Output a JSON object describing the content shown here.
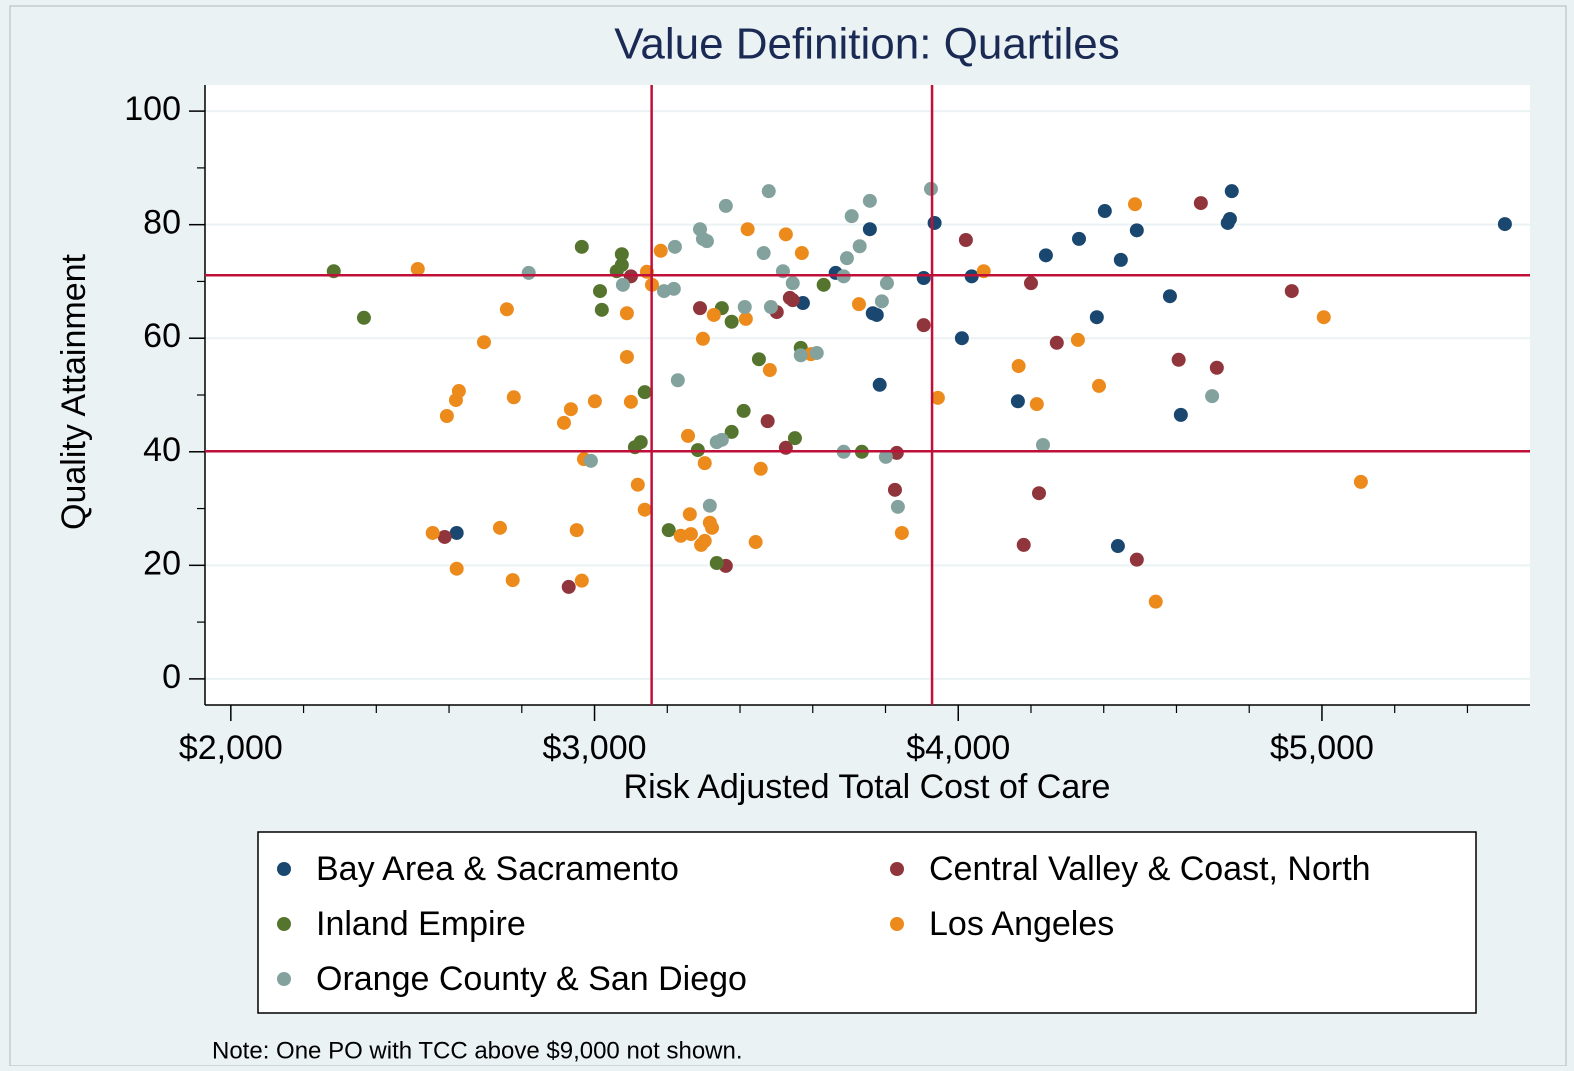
{
  "chart_data": {
    "type": "scatter",
    "title": "Value Definition: Quartiles",
    "xlabel": "Risk Adjusted Total Cost of Care",
    "ylabel": "Quality Attainment",
    "note": "Note: One PO with TCC above $9,000 not shown.",
    "xlim": [
      1929,
      5572
    ],
    "ylim": [
      -4.6,
      104.6
    ],
    "xticks": [
      {
        "value": 2000,
        "label": "$2,000"
      },
      {
        "value": 3000,
        "label": "$3,000"
      },
      {
        "value": 4000,
        "label": "$4,000"
      },
      {
        "value": 5000,
        "label": "$5,000"
      }
    ],
    "x_minor_ticks": [
      2200,
      2400,
      2600,
      2800,
      3200,
      3400,
      3600,
      3800,
      4200,
      4400,
      4600,
      4800,
      5200,
      5400
    ],
    "yticks": [
      0,
      20,
      40,
      60,
      80,
      100
    ],
    "y_minor_ticks": [
      10,
      30,
      50,
      70,
      90
    ],
    "grid": true,
    "xlines": [
      3157,
      3928
    ],
    "ylines": [
      71.1,
      40.1
    ],
    "line_color": "#c0103a",
    "series": [
      {
        "name": "Bay Area & Sacramento",
        "color": "#1a476f",
        "x": [
          2621,
          3663,
          3757,
          3765,
          3776,
          3784,
          3573,
          3905,
          3935,
          4010,
          4037,
          4241,
          4332,
          4381,
          4403,
          4447,
          4491,
          4164,
          4439,
          4582,
          4612,
          4741,
          4747,
          4752,
          5503
        ],
        "y": [
          25.7,
          71.5,
          79.2,
          64.4,
          64.1,
          51.8,
          66.2,
          70.6,
          80.3,
          60.0,
          70.9,
          74.6,
          77.5,
          63.7,
          82.4,
          73.8,
          79.0,
          48.9,
          23.4,
          67.4,
          46.5,
          80.3,
          81.0,
          85.9,
          80.1
        ]
      },
      {
        "name": "Central Valley & Coast, North",
        "color": "#90353b",
        "x": [
          2588,
          2929,
          3100,
          3290,
          3361,
          3501,
          3476,
          3526,
          3537,
          3545,
          3826,
          3831,
          3905,
          4021,
          4180,
          4200,
          4222,
          4271,
          4491,
          4606,
          4667,
          4711,
          4917
        ],
        "y": [
          25.0,
          16.2,
          70.9,
          65.3,
          19.9,
          64.6,
          45.4,
          40.7,
          67.1,
          66.7,
          33.3,
          39.8,
          62.3,
          77.3,
          23.6,
          69.7,
          32.7,
          59.2,
          21.0,
          56.2,
          83.8,
          54.8,
          68.3
        ]
      },
      {
        "name": "Inland Empire",
        "color": "#55752f",
        "x": [
          2283,
          2366,
          2965,
          3015,
          3020,
          3061,
          3075,
          3075,
          3138,
          3111,
          3127,
          3204,
          3284,
          3336,
          3350,
          3377,
          3377,
          3410,
          3452,
          3551,
          3567,
          3630,
          3735
        ],
        "y": [
          71.8,
          63.6,
          76.1,
          68.3,
          65.0,
          71.8,
          74.8,
          72.9,
          50.5,
          40.8,
          41.7,
          26.2,
          40.3,
          20.4,
          65.3,
          62.9,
          43.5,
          47.2,
          56.3,
          42.4,
          58.3,
          69.4,
          40.0
        ]
      },
      {
        "name": "Los Angeles",
        "color": "#ec8a1c",
        "x": [
          2514,
          2555,
          2594,
          2619,
          2627,
          2621,
          2696,
          2740,
          2759,
          2775,
          2778,
          2916,
          2935,
          2951,
          2965,
          2971,
          3001,
          3089,
          3089,
          3100,
          3119,
          3138,
          3144,
          3158,
          3182,
          3237,
          3265,
          3262,
          3257,
          3298,
          3293,
          3303,
          3317,
          3323,
          3303,
          3328,
          3416,
          3421,
          3443,
          3457,
          3482,
          3526,
          3570,
          3595,
          3727,
          3845,
          3944,
          4070,
          4166,
          4216,
          4329,
          4387,
          4486,
          4543,
          5005,
          5107
        ],
        "y": [
          72.2,
          25.7,
          46.3,
          49.1,
          50.7,
          19.4,
          59.3,
          26.6,
          65.1,
          17.4,
          49.6,
          45.1,
          47.5,
          26.2,
          17.3,
          38.7,
          48.9,
          64.4,
          56.7,
          48.8,
          34.2,
          29.8,
          71.7,
          69.4,
          75.4,
          25.2,
          25.5,
          29.0,
          42.8,
          59.9,
          23.6,
          24.3,
          27.5,
          26.6,
          38.0,
          64.1,
          63.4,
          79.2,
          24.1,
          37.0,
          54.4,
          78.3,
          75.0,
          57.2,
          66.0,
          25.7,
          49.5,
          71.8,
          55.1,
          48.4,
          59.7,
          51.6,
          83.6,
          13.6,
          63.7,
          34.7
        ]
      },
      {
        "name": "Orange County & San Diego",
        "color": "#83a29e",
        "x": [
          2819,
          2990,
          3078,
          3191,
          3218,
          3221,
          3229,
          3290,
          3298,
          3309,
          3317,
          3336,
          3350,
          3361,
          3413,
          3465,
          3479,
          3485,
          3518,
          3545,
          3567,
          3611,
          3685,
          3694,
          3707,
          3729,
          3757,
          3685,
          3790,
          3804,
          3801,
          3834,
          3925,
          4233,
          4698
        ],
        "y": [
          71.5,
          38.4,
          69.4,
          68.3,
          68.7,
          76.1,
          52.6,
          79.2,
          77.5,
          77.1,
          30.5,
          41.7,
          42.1,
          83.3,
          65.5,
          75.0,
          85.9,
          65.5,
          71.8,
          69.7,
          57.0,
          57.4,
          70.9,
          74.1,
          81.5,
          76.2,
          84.2,
          40.0,
          66.5,
          69.7,
          39.1,
          30.3,
          86.3,
          41.2,
          49.8
        ]
      }
    ]
  }
}
